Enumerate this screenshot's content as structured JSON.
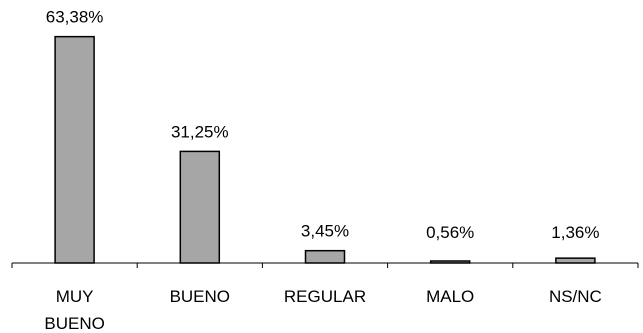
{
  "chart_data": {
    "type": "bar",
    "categories": [
      [
        "MUY",
        "BUENO"
      ],
      [
        "BUENO"
      ],
      [
        "REGULAR"
      ],
      [
        "MALO"
      ],
      [
        "NS/NC"
      ]
    ],
    "values": [
      63.38,
      31.25,
      3.45,
      0.56,
      1.36
    ],
    "data_labels": [
      "63,38%",
      "31,25%",
      "3,45%",
      "0,56%",
      "1,36%"
    ],
    "ylim": [
      0,
      70
    ],
    "grid": false,
    "bar_color": "#a6a6a6"
  }
}
